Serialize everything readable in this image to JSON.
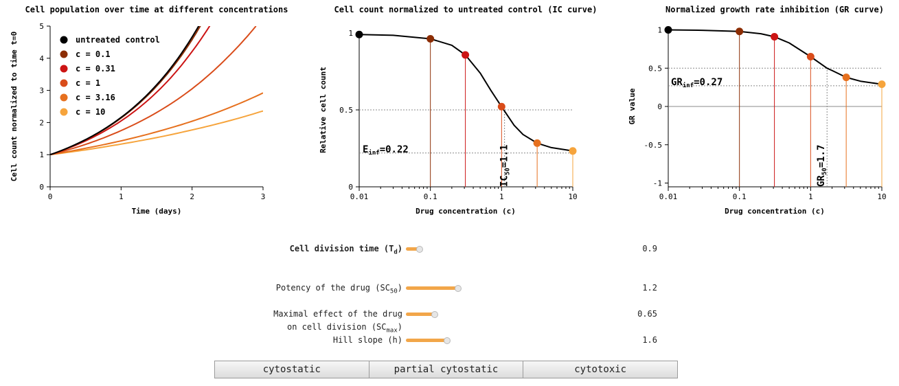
{
  "colors": {
    "untreated": "#000000",
    "c_0_1": "#8c2d04",
    "c_0_31": "#cc1414",
    "c_1": "#d94c1a",
    "c_3_16": "#e6701e",
    "c_10": "#f6a43c",
    "accent": "#f2a649"
  },
  "chart_data": [
    {
      "type": "line",
      "title": "Cell population over time at different concentrations",
      "xlabel": "Time (days)",
      "ylabel": "Cell count normalized to time t=0",
      "xlim": [
        0,
        3
      ],
      "ylim": [
        0,
        5
      ],
      "xticks": [
        "0",
        "1",
        "2",
        "3"
      ],
      "yticks": [
        "0",
        "1",
        "2",
        "3",
        "4",
        "5"
      ],
      "legend_placement": "top-left",
      "series": [
        {
          "name": "untreated control",
          "color_key": "untreated",
          "x": [
            0,
            0.5,
            1,
            1.5,
            2,
            2.2
          ],
          "y": [
            1,
            1.47,
            2.16,
            3.17,
            4.66,
            5.43
          ]
        },
        {
          "name": "c = 0.1",
          "color_key": "c_0_1",
          "x": [
            0,
            0.5,
            1,
            1.5,
            2,
            2.2
          ],
          "y": [
            1,
            1.46,
            2.14,
            3.13,
            4.58,
            5.34
          ]
        },
        {
          "name": "c = 0.31",
          "color_key": "c_0_31",
          "x": [
            0,
            0.5,
            1,
            1.5,
            2,
            2.3
          ],
          "y": [
            1,
            1.43,
            2.05,
            2.94,
            4.21,
            5.19
          ]
        },
        {
          "name": "c = 1",
          "color_key": "c_1",
          "x": [
            0,
            0.5,
            1,
            1.5,
            2,
            2.5,
            2.9
          ],
          "y": [
            1,
            1.32,
            1.75,
            2.31,
            3.05,
            4.03,
            5.0
          ]
        },
        {
          "name": "c = 3.16",
          "color_key": "c_3_16",
          "x": [
            0,
            0.5,
            1,
            1.5,
            2,
            2.5,
            3
          ],
          "y": [
            1,
            1.2,
            1.43,
            1.71,
            2.04,
            2.44,
            2.92
          ]
        },
        {
          "name": "c = 10",
          "color_key": "c_10",
          "x": [
            0,
            0.5,
            1,
            1.5,
            2,
            2.5,
            3
          ],
          "y": [
            1,
            1.15,
            1.33,
            1.53,
            1.77,
            2.04,
            2.36
          ]
        }
      ]
    },
    {
      "type": "line",
      "title": "Cell count normalized to untreated control (IC curve)",
      "xlabel": "Drug concentration (c)",
      "ylabel": "Relative cell count",
      "xscale": "log",
      "xlim": [
        0.01,
        10
      ],
      "ylim": [
        0,
        1
      ],
      "xticks": [
        "0.01",
        "0.1",
        "1",
        "10"
      ],
      "yticks": [
        "0",
        "0.5",
        "1"
      ],
      "curve": {
        "x": [
          0.01,
          0.03,
          0.1,
          0.2,
          0.31,
          0.5,
          0.7,
          1,
          1.5,
          2,
          3.16,
          5,
          10
        ],
        "y": [
          0.99,
          0.985,
          0.962,
          0.92,
          0.857,
          0.74,
          0.63,
          0.521,
          0.4,
          0.34,
          0.284,
          0.255,
          0.233
        ]
      },
      "points": [
        {
          "x": 0.01,
          "y": 0.99,
          "color_key": "untreated"
        },
        {
          "x": 0.1,
          "y": 0.962,
          "color_key": "c_0_1"
        },
        {
          "x": 0.31,
          "y": 0.857,
          "color_key": "c_0_31"
        },
        {
          "x": 1,
          "y": 0.521,
          "color_key": "c_1"
        },
        {
          "x": 3.16,
          "y": 0.284,
          "color_key": "c_3_16"
        },
        {
          "x": 10,
          "y": 0.233,
          "color_key": "c_10"
        }
      ],
      "reference_lines": [
        {
          "axis": "y",
          "value": 0.5
        },
        {
          "axis": "y",
          "value": 0.22
        },
        {
          "axis": "x",
          "value": 1.1
        }
      ],
      "annotations": [
        {
          "text": "E",
          "sub": "inf",
          "suffix": "=0.22"
        },
        {
          "text": "IC",
          "sub": "50",
          "suffix": "=1.1"
        }
      ]
    },
    {
      "type": "line",
      "title": "Normalized growth rate inhibition (GR curve)",
      "xlabel": "Drug concentration (c)",
      "ylabel": "GR value",
      "xscale": "log",
      "xlim": [
        0.01,
        10
      ],
      "ylim": [
        -1.05,
        1.05
      ],
      "xticks": [
        "0.01",
        "0.1",
        "1",
        "10"
      ],
      "yticks": [
        "-1",
        "-0.5",
        "0",
        "0.5",
        "1"
      ],
      "curve": {
        "x": [
          0.01,
          0.03,
          0.1,
          0.2,
          0.31,
          0.5,
          1,
          1.7,
          2,
          3.16,
          5,
          10
        ],
        "y": [
          1.0,
          0.995,
          0.98,
          0.95,
          0.91,
          0.83,
          0.65,
          0.5,
          0.47,
          0.38,
          0.33,
          0.29
        ]
      },
      "points": [
        {
          "x": 0.01,
          "y": 1.0,
          "color_key": "untreated"
        },
        {
          "x": 0.1,
          "y": 0.98,
          "color_key": "c_0_1"
        },
        {
          "x": 0.31,
          "y": 0.91,
          "color_key": "c_0_31"
        },
        {
          "x": 1,
          "y": 0.65,
          "color_key": "c_1"
        },
        {
          "x": 3.16,
          "y": 0.38,
          "color_key": "c_3_16"
        },
        {
          "x": 10,
          "y": 0.29,
          "color_key": "c_10"
        }
      ],
      "reference_lines": [
        {
          "axis": "y",
          "value": 0.5
        },
        {
          "axis": "y",
          "value": 0.27
        },
        {
          "axis": "x",
          "value": 1.7
        },
        {
          "axis": "y",
          "value": 0,
          "solid": true
        }
      ],
      "annotations": [
        {
          "text": "GR",
          "sub": "inf",
          "suffix": "=0.27"
        },
        {
          "text": "GR",
          "sub": "50",
          "suffix": "=1.7"
        }
      ]
    }
  ],
  "controls": [
    {
      "id": "td",
      "label": "Cell division time (T",
      "sub": "d",
      "label_end": ")",
      "value": "0.9",
      "fraction": 0.15,
      "bold": true
    },
    {
      "id": "sc50",
      "label": "Potency of the drug (SC",
      "sub": "50",
      "label_end": ")",
      "value": "1.2",
      "fraction": 0.6
    },
    {
      "id": "scmax",
      "label_line1": "Maximal effect of the drug",
      "label": "on cell division (SC",
      "sub": "max",
      "label_end": ")",
      "value": "0.65",
      "fraction": 0.33
    },
    {
      "id": "hill",
      "label": "Hill slope (h)",
      "value": "1.6",
      "fraction": 0.47
    }
  ],
  "buttons": [
    "cytostatic",
    "partial cytostatic",
    "cytotoxic"
  ]
}
